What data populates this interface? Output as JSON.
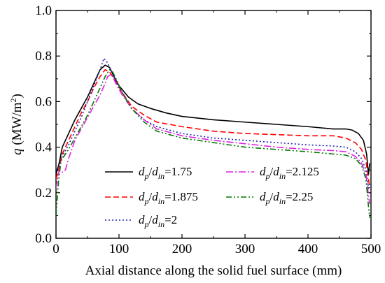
{
  "chart_data": {
    "type": "line",
    "xlabel": "Axial distance along the solid fuel surface (mm)",
    "ylabel_symbol": "q",
    "ylabel_unit": "(MW/m",
    "ylabel_unit_sup": "2",
    "ylabel_unit_close": ")",
    "xlim": [
      0,
      500
    ],
    "ylim": [
      0.0,
      1.0
    ],
    "x_ticks": [
      "0",
      "100",
      "200",
      "300",
      "400",
      "500"
    ],
    "y_ticks": [
      "0.0",
      "0.2",
      "0.4",
      "0.6",
      "0.8",
      "1.0"
    ],
    "grid": false,
    "legend_position": "lower-left",
    "series": [
      {
        "name": "dp/din=1.75",
        "label_d1": "d",
        "label_s1": "p",
        "label_slash": "/",
        "label_d2": "d",
        "label_s2": "in",
        "label_val": "=1.75",
        "color": "#000000",
        "dash": "solid",
        "points": [
          [
            0,
            0.28
          ],
          [
            5,
            0.33
          ],
          [
            10,
            0.4
          ],
          [
            20,
            0.46
          ],
          [
            30,
            0.52
          ],
          [
            40,
            0.57
          ],
          [
            50,
            0.62
          ],
          [
            60,
            0.68
          ],
          [
            70,
            0.74
          ],
          [
            78,
            0.76
          ],
          [
            85,
            0.75
          ],
          [
            92,
            0.71
          ],
          [
            100,
            0.67
          ],
          [
            115,
            0.62
          ],
          [
            130,
            0.59
          ],
          [
            150,
            0.57
          ],
          [
            175,
            0.55
          ],
          [
            200,
            0.535
          ],
          [
            250,
            0.52
          ],
          [
            300,
            0.51
          ],
          [
            350,
            0.5
          ],
          [
            400,
            0.49
          ],
          [
            440,
            0.48
          ],
          [
            460,
            0.48
          ],
          [
            470,
            0.475
          ],
          [
            480,
            0.46
          ],
          [
            488,
            0.43
          ],
          [
            493,
            0.37
          ],
          [
            496,
            0.28
          ],
          [
            498,
            0.33
          ]
        ]
      },
      {
        "name": "dp/din=1.875",
        "label_d1": "d",
        "label_s1": "p",
        "label_slash": "/",
        "label_d2": "d",
        "label_s2": "in",
        "label_val": "=1.875",
        "color": "#ff0000",
        "dash": "8,4",
        "points": [
          [
            0,
            0.26
          ],
          [
            5,
            0.31
          ],
          [
            10,
            0.37
          ],
          [
            20,
            0.43
          ],
          [
            30,
            0.49
          ],
          [
            40,
            0.55
          ],
          [
            50,
            0.6
          ],
          [
            60,
            0.66
          ],
          [
            70,
            0.71
          ],
          [
            78,
            0.74
          ],
          [
            85,
            0.73
          ],
          [
            95,
            0.69
          ],
          [
            105,
            0.64
          ],
          [
            120,
            0.58
          ],
          [
            140,
            0.54
          ],
          [
            160,
            0.51
          ],
          [
            200,
            0.49
          ],
          [
            250,
            0.47
          ],
          [
            300,
            0.46
          ],
          [
            350,
            0.455
          ],
          [
            400,
            0.45
          ],
          [
            440,
            0.45
          ],
          [
            460,
            0.44
          ],
          [
            475,
            0.42
          ],
          [
            485,
            0.39
          ],
          [
            492,
            0.34
          ],
          [
            496,
            0.26
          ],
          [
            498,
            0.22
          ]
        ]
      },
      {
        "name": "dp/din=2",
        "label_d1": "d",
        "label_s1": "p",
        "label_slash": "/",
        "label_d2": "d",
        "label_s2": "in",
        "label_val": "=2",
        "color": "#1f1fb4",
        "dash": "2,3",
        "points": [
          [
            0,
            0.3
          ],
          [
            5,
            0.32
          ],
          [
            10,
            0.36
          ],
          [
            20,
            0.41
          ],
          [
            30,
            0.47
          ],
          [
            40,
            0.53
          ],
          [
            50,
            0.6
          ],
          [
            60,
            0.67
          ],
          [
            70,
            0.74
          ],
          [
            76,
            0.79
          ],
          [
            82,
            0.77
          ],
          [
            90,
            0.72
          ],
          [
            100,
            0.66
          ],
          [
            120,
            0.57
          ],
          [
            140,
            0.52
          ],
          [
            160,
            0.49
          ],
          [
            200,
            0.46
          ],
          [
            250,
            0.44
          ],
          [
            300,
            0.43
          ],
          [
            350,
            0.42
          ],
          [
            400,
            0.41
          ],
          [
            440,
            0.405
          ],
          [
            460,
            0.4
          ],
          [
            475,
            0.38
          ],
          [
            485,
            0.35
          ],
          [
            492,
            0.3
          ],
          [
            496,
            0.22
          ],
          [
            498,
            0.24
          ]
        ]
      },
      {
        "name": "dp/din=2.125",
        "label_d1": "d",
        "label_s1": "p",
        "label_slash": "/",
        "label_d2": "d",
        "label_s2": "in",
        "label_val": "=2.125",
        "color": "#e020e0",
        "dash": "10,3,2,3",
        "points": [
          [
            0,
            0.22
          ],
          [
            5,
            0.3
          ],
          [
            10,
            0.29
          ],
          [
            15,
            0.3
          ],
          [
            20,
            0.35
          ],
          [
            30,
            0.43
          ],
          [
            40,
            0.48
          ],
          [
            50,
            0.53
          ],
          [
            60,
            0.58
          ],
          [
            70,
            0.63
          ],
          [
            78,
            0.68
          ],
          [
            82,
            0.71
          ],
          [
            88,
            0.72
          ],
          [
            95,
            0.68
          ],
          [
            105,
            0.63
          ],
          [
            120,
            0.57
          ],
          [
            140,
            0.52
          ],
          [
            160,
            0.48
          ],
          [
            200,
            0.45
          ],
          [
            250,
            0.43
          ],
          [
            300,
            0.415
          ],
          [
            350,
            0.4
          ],
          [
            400,
            0.39
          ],
          [
            440,
            0.385
          ],
          [
            460,
            0.38
          ],
          [
            475,
            0.36
          ],
          [
            485,
            0.33
          ],
          [
            492,
            0.28
          ],
          [
            496,
            0.19
          ],
          [
            498,
            0.15
          ]
        ]
      },
      {
        "name": "dp/din=2.25",
        "label_d1": "d",
        "label_s1": "p",
        "label_slash": "/",
        "label_d2": "d",
        "label_s2": "in",
        "label_val": "=2.25",
        "color": "#007a00",
        "dash": "8,3,2,3,2,3",
        "points": [
          [
            0,
            0.1
          ],
          [
            4,
            0.25
          ],
          [
            8,
            0.34
          ],
          [
            15,
            0.37
          ],
          [
            20,
            0.39
          ],
          [
            30,
            0.44
          ],
          [
            40,
            0.49
          ],
          [
            50,
            0.54
          ],
          [
            60,
            0.6
          ],
          [
            70,
            0.66
          ],
          [
            78,
            0.71
          ],
          [
            85,
            0.74
          ],
          [
            90,
            0.73
          ],
          [
            97,
            0.69
          ],
          [
            105,
            0.64
          ],
          [
            120,
            0.57
          ],
          [
            140,
            0.51
          ],
          [
            160,
            0.47
          ],
          [
            200,
            0.44
          ],
          [
            250,
            0.42
          ],
          [
            300,
            0.4
          ],
          [
            350,
            0.39
          ],
          [
            400,
            0.38
          ],
          [
            440,
            0.37
          ],
          [
            460,
            0.365
          ],
          [
            475,
            0.35
          ],
          [
            485,
            0.32
          ],
          [
            492,
            0.26
          ],
          [
            496,
            0.14
          ],
          [
            498,
            0.09
          ]
        ]
      }
    ]
  }
}
